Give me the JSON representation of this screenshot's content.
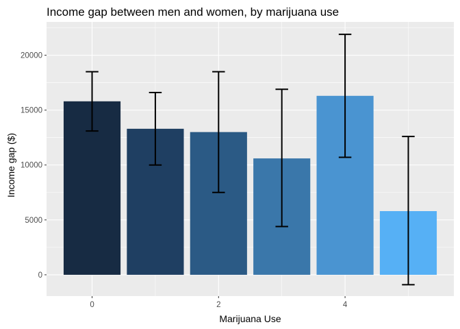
{
  "chart_data": {
    "type": "bar",
    "title": "Income gap between men and women, by marijuana use",
    "xlabel": "Marijuana Use",
    "ylabel": "Income gap ($)",
    "x": [
      0,
      1,
      2,
      3,
      4,
      5
    ],
    "values": [
      15800,
      13300,
      13000,
      10600,
      16300,
      5800
    ],
    "error_low": [
      13100,
      10000,
      7500,
      4400,
      10700,
      -900
    ],
    "error_high": [
      18500,
      16600,
      18500,
      16900,
      21900,
      12600
    ],
    "bar_colors": [
      "#172B43",
      "#1F3F62",
      "#2B5A85",
      "#3A77AA",
      "#4A94D1",
      "#56B0F5"
    ],
    "xlim": [
      -0.72,
      5.72
    ],
    "ylim": [
      -1940,
      23030
    ],
    "x_ticks": [
      0,
      2,
      4
    ],
    "y_ticks": [
      0,
      5000,
      10000,
      15000,
      20000
    ],
    "legend": "none",
    "grid": true,
    "panel_color": "#EBEBEB",
    "grid_color": "#FFFFFF"
  }
}
